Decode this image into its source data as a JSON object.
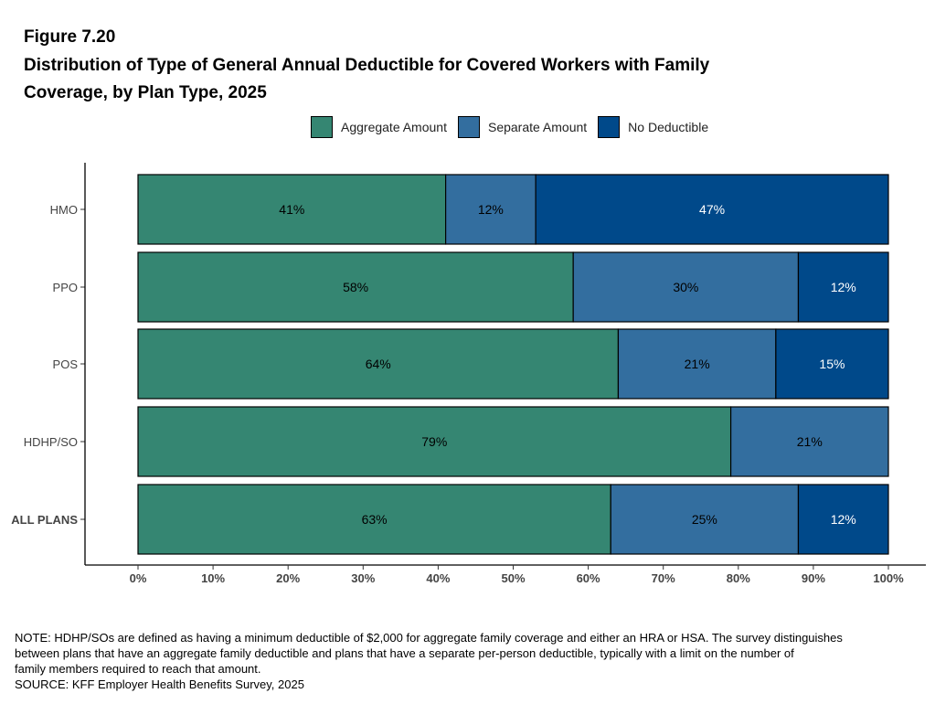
{
  "header": {
    "figure_label": "Figure 7.20",
    "title_line1": "Distribution of Type of General Annual Deductible for Covered Workers with Family",
    "title_line2": "Coverage, by Plan Type, 2025"
  },
  "colors": {
    "aggregate": "#358672",
    "separate": "#336e9f",
    "none": "#00498a"
  },
  "chart_data": {
    "type": "bar",
    "orientation": "horizontal",
    "stacked": true,
    "categories": [
      "HMO",
      "PPO",
      "POS",
      "HDHP/SO",
      "ALL PLANS"
    ],
    "series": [
      {
        "name": "Aggregate Amount",
        "values": [
          41,
          58,
          64,
          79,
          63
        ],
        "labels": [
          "41%",
          "58%",
          "64%",
          "79%",
          "63%"
        ],
        "color": "#358672"
      },
      {
        "name": "Separate Amount",
        "values": [
          12,
          30,
          21,
          21,
          25
        ],
        "labels": [
          "12%",
          "30%",
          "21%",
          "21%",
          "25%"
        ],
        "color": "#336e9f"
      },
      {
        "name": "No Deductible",
        "values": [
          47,
          12,
          15,
          0,
          12
        ],
        "labels": [
          "47%",
          "12%",
          "15%",
          "",
          "12%"
        ],
        "color": "#00498a"
      }
    ],
    "xlim": [
      0,
      100
    ],
    "x_ticks": [
      "0%",
      "10%",
      "20%",
      "30%",
      "40%",
      "50%",
      "60%",
      "70%",
      "80%",
      "90%",
      "100%"
    ],
    "legend_position": "top",
    "grid": false
  },
  "notes": {
    "line1": "NOTE: HDHP/SOs are defined as having a minimum deductible of $2,000 for aggregate family coverage and either an HRA or HSA. The survey distinguishes",
    "line2": "between plans that have an aggregate family deductible and plans that have a separate per-person deductible, typically with a limit on the number of",
    "line3": "family members required to reach that amount.",
    "source": "SOURCE: KFF Employer Health Benefits Survey, 2025"
  }
}
